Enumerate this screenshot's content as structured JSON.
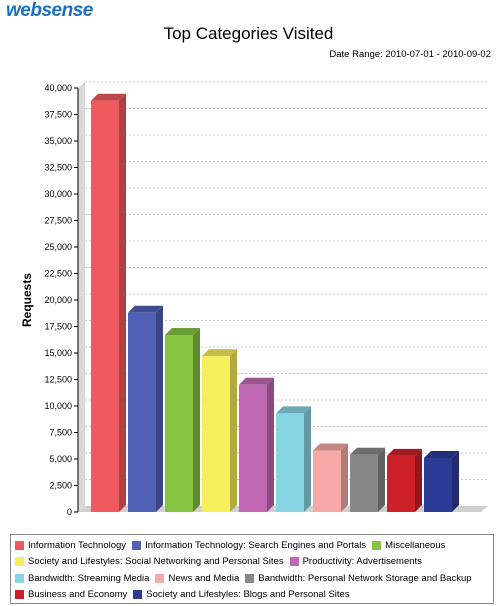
{
  "header": {
    "logo_text": "websense",
    "title": "Top Categories Visited",
    "date_range": "Date Range: 2010-07-01 - 2010-09-02"
  },
  "chart_data": {
    "type": "bar",
    "ylabel": "Requests",
    "xlabel": "",
    "ylim": [
      0,
      40000
    ],
    "yticks": [
      "0",
      "2,500",
      "5,000",
      "7,500",
      "10,000",
      "12,500",
      "15,000",
      "17,500",
      "20,000",
      "22,500",
      "25,000",
      "27,500",
      "30,000",
      "32,500",
      "35,000",
      "37,500",
      "40,000"
    ],
    "grid": true,
    "legend_position": "bottom",
    "categories": [
      "Information Technology",
      "Information Technology: Search Engines and Portals",
      "Miscellaneous",
      "Society and Lifestyles: Social Networking and Personal Sites",
      "Productivity: Advertisements",
      "Bandwidth: Streaming Media",
      "News and Media",
      "Bandwidth: Personal Network Storage and Backup",
      "Business and Economy",
      "Society and Lifestyles: Blogs and Personal Sites"
    ],
    "values": [
      38800,
      18800,
      16700,
      14700,
      12000,
      9300,
      5800,
      5400,
      5300,
      5100
    ],
    "colors": [
      "#f05a5f",
      "#5060b4",
      "#84c440",
      "#f6ee5a",
      "#c069b2",
      "#88d4e2",
      "#f7aaa8",
      "#888888",
      "#cc2128",
      "#2c3b96"
    ]
  },
  "legend_rows": [
    [
      0,
      1,
      2
    ],
    [
      3,
      4
    ],
    [
      5,
      6,
      7
    ],
    [
      8,
      9
    ]
  ]
}
